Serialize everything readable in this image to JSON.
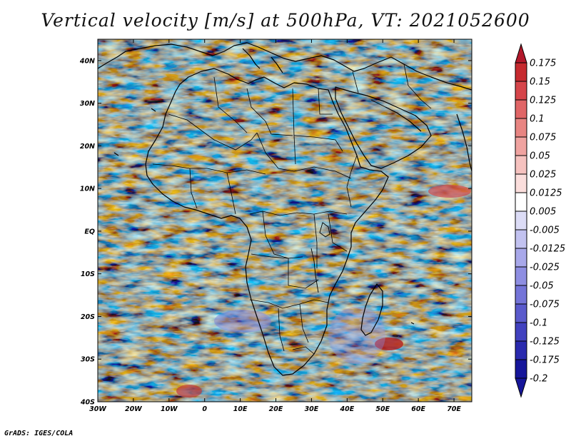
{
  "title": "Vertical velocity [m/s] at 500hPa, VT: 2021052600",
  "credit": "GrADS: IGES/COLA",
  "map": {
    "lon_range": [
      -30,
      75
    ],
    "lat_range": [
      -40,
      45
    ],
    "lon_ticks": [
      "30W",
      "20W",
      "10W",
      "0",
      "10E",
      "20E",
      "30E",
      "40E",
      "50E",
      "60E",
      "70E"
    ],
    "lat_ticks": [
      "40N",
      "30N",
      "20N",
      "10N",
      "EQ",
      "10S",
      "20S",
      "30S",
      "40S"
    ]
  },
  "colorbar": {
    "levels": [
      "0.175",
      "0.15",
      "0.125",
      "0.1",
      "0.075",
      "0.05",
      "0.025",
      "0.0125",
      "0.005",
      "-0.005",
      "-0.0125",
      "-0.025",
      "-0.05",
      "-0.075",
      "-0.1",
      "-0.125",
      "-0.175",
      "-0.2"
    ],
    "colors": [
      "#b2182b",
      "#c62a2f",
      "#d6454a",
      "#e06566",
      "#e88582",
      "#f0a3a0",
      "#f6c2bf",
      "#fbdedc",
      "#ffffff",
      "#dcdcf6",
      "#c2c2f0",
      "#a8a8ea",
      "#8e8ee2",
      "#7474d8",
      "#5a5acc",
      "#4141bf",
      "#2a2aae",
      "#16169a"
    ]
  }
}
